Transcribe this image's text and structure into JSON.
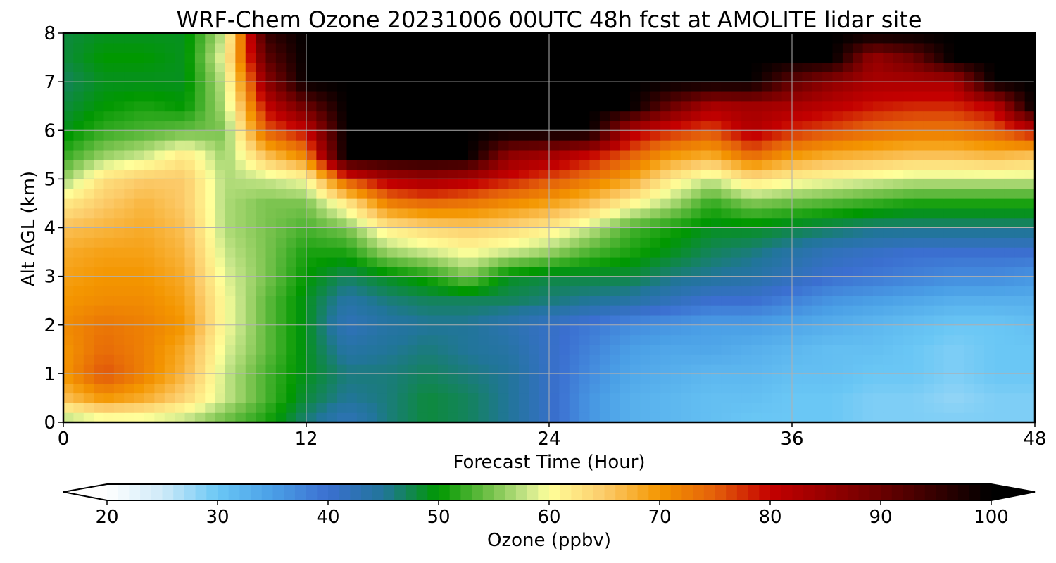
{
  "chart_data": {
    "type": "heatmap",
    "title": "WRF-Chem Ozone  20231006 00UTC 48h fcst at AMOLITE lidar site",
    "xlabel": "Forecast Time (Hour)",
    "ylabel": "Alt AGL (km)",
    "xlim": [
      0,
      48
    ],
    "ylim": [
      0,
      8
    ],
    "x_ticks": [
      "0",
      "12",
      "24",
      "36",
      "48"
    ],
    "y_ticks": [
      "0",
      "1",
      "2",
      "3",
      "4",
      "5",
      "6",
      "7",
      "8"
    ],
    "grid": true,
    "colorbar": {
      "label": "Ozone  (ppbv)",
      "range": [
        20,
        100
      ],
      "ticks": [
        "20",
        "30",
        "40",
        "50",
        "60",
        "70",
        "80",
        "90",
        "100"
      ],
      "extend": "both",
      "stops": [
        [
          20,
          "#ffffff"
        ],
        [
          25,
          "#cfeaf8"
        ],
        [
          30,
          "#6ac7f5"
        ],
        [
          35,
          "#4a9fe6"
        ],
        [
          40,
          "#3b6fd0"
        ],
        [
          45,
          "#21759a"
        ],
        [
          50,
          "#009800"
        ],
        [
          55,
          "#7cc450"
        ],
        [
          58,
          "#c8e68a"
        ],
        [
          60,
          "#ffff9a"
        ],
        [
          65,
          "#fccb6a"
        ],
        [
          70,
          "#f49600"
        ],
        [
          75,
          "#e4600a"
        ],
        [
          80,
          "#c40000"
        ],
        [
          90,
          "#6a0000"
        ],
        [
          100,
          "#000000"
        ]
      ]
    },
    "x": [
      0,
      2,
      4,
      6,
      8,
      10,
      12,
      14,
      16,
      18,
      20,
      22,
      24,
      26,
      28,
      30,
      32,
      34,
      36,
      38,
      40,
      42,
      44,
      46,
      48
    ],
    "y": [
      0,
      0.5,
      1,
      1.5,
      2,
      2.5,
      3,
      3.5,
      4,
      4.5,
      5,
      5.5,
      6,
      6.5,
      7,
      7.5,
      8
    ],
    "z": [
      [
        56,
        58,
        58,
        57,
        54,
        51,
        46,
        42,
        46,
        48,
        47,
        45,
        41,
        36,
        33,
        32,
        31,
        30,
        30,
        30,
        29,
        29,
        29,
        29,
        29
      ],
      [
        66,
        70,
        68,
        64,
        58,
        53,
        48,
        45,
        46,
        48,
        47,
        45,
        41,
        36,
        33,
        32,
        31,
        31,
        30,
        30,
        29,
        29,
        28,
        29,
        29
      ],
      [
        70,
        76,
        72,
        67,
        58,
        53,
        49,
        46,
        46,
        47,
        46,
        45,
        41,
        37,
        34,
        33,
        32,
        32,
        31,
        31,
        30,
        30,
        29,
        30,
        30
      ],
      [
        70,
        74,
        72,
        68,
        59,
        54,
        49,
        44,
        45,
        46,
        45,
        44,
        41,
        38,
        35,
        34,
        34,
        33,
        32,
        31,
        31,
        30,
        29,
        30,
        30
      ],
      [
        71,
        73,
        72,
        70,
        60,
        54,
        49,
        42,
        44,
        45,
        45,
        43,
        41,
        39,
        37,
        36,
        35,
        35,
        34,
        33,
        32,
        31,
        30,
        30,
        31
      ],
      [
        70,
        71,
        71,
        69,
        60,
        54,
        49,
        44,
        46,
        47,
        47,
        47,
        46,
        45,
        44,
        42,
        40,
        40,
        38,
        36,
        35,
        34,
        33,
        33,
        33
      ],
      [
        69,
        70,
        70,
        68,
        59,
        55,
        50,
        47,
        49,
        51,
        55,
        49,
        48,
        48,
        48,
        46,
        45,
        44,
        42,
        40,
        39,
        38,
        37,
        37,
        36
      ],
      [
        68,
        69,
        69,
        67,
        58,
        55,
        51,
        51,
        56,
        58,
        60,
        58,
        56,
        53,
        51,
        49,
        47,
        46,
        44,
        42,
        41,
        40,
        40,
        40,
        40
      ],
      [
        66,
        67,
        68,
        66,
        57,
        55,
        53,
        55,
        62,
        64,
        65,
        64,
        62,
        58,
        53,
        51,
        49,
        49,
        48,
        47,
        46,
        46,
        46,
        46,
        46
      ],
      [
        62,
        65,
        67,
        65,
        57,
        55,
        55,
        62,
        72,
        74,
        73,
        71,
        69,
        66,
        61,
        57,
        52,
        55,
        54,
        53,
        52,
        51,
        51,
        51,
        51
      ],
      [
        56,
        63,
        65,
        65,
        57,
        58,
        60,
        76,
        82,
        84,
        82,
        79,
        76,
        73,
        69,
        62,
        58,
        63,
        61,
        60,
        59,
        58,
        58,
        58,
        58
      ],
      [
        52,
        56,
        58,
        62,
        56,
        66,
        72,
        100,
        100,
        100,
        100,
        86,
        84,
        80,
        75,
        70,
        68,
        74,
        70,
        68,
        67,
        66,
        66,
        67,
        66
      ],
      [
        49,
        52,
        53,
        54,
        55,
        75,
        80,
        100,
        100,
        100,
        100,
        100,
        100,
        100,
        82,
        78,
        76,
        82,
        78,
        76,
        74,
        73,
        73,
        75,
        80
      ],
      [
        48,
        50,
        51,
        50,
        57,
        80,
        90,
        100,
        100,
        100,
        100,
        100,
        100,
        100,
        100,
        90,
        83,
        84,
        83,
        81,
        79,
        78,
        78,
        81,
        100
      ],
      [
        47,
        49,
        49,
        49,
        58,
        86,
        100,
        100,
        100,
        100,
        100,
        100,
        100,
        100,
        100,
        100,
        100,
        100,
        91,
        86,
        83,
        83,
        83,
        100,
        100
      ],
      [
        48,
        50,
        50,
        49,
        60,
        91,
        100,
        100,
        100,
        100,
        100,
        100,
        100,
        100,
        100,
        100,
        100,
        100,
        100,
        100,
        85,
        90,
        100,
        100,
        100
      ],
      [
        48,
        49,
        49,
        49,
        58,
        95,
        100,
        100,
        100,
        100,
        100,
        100,
        100,
        100,
        100,
        100,
        100,
        100,
        100,
        100,
        100,
        100,
        100,
        100,
        100
      ]
    ]
  }
}
